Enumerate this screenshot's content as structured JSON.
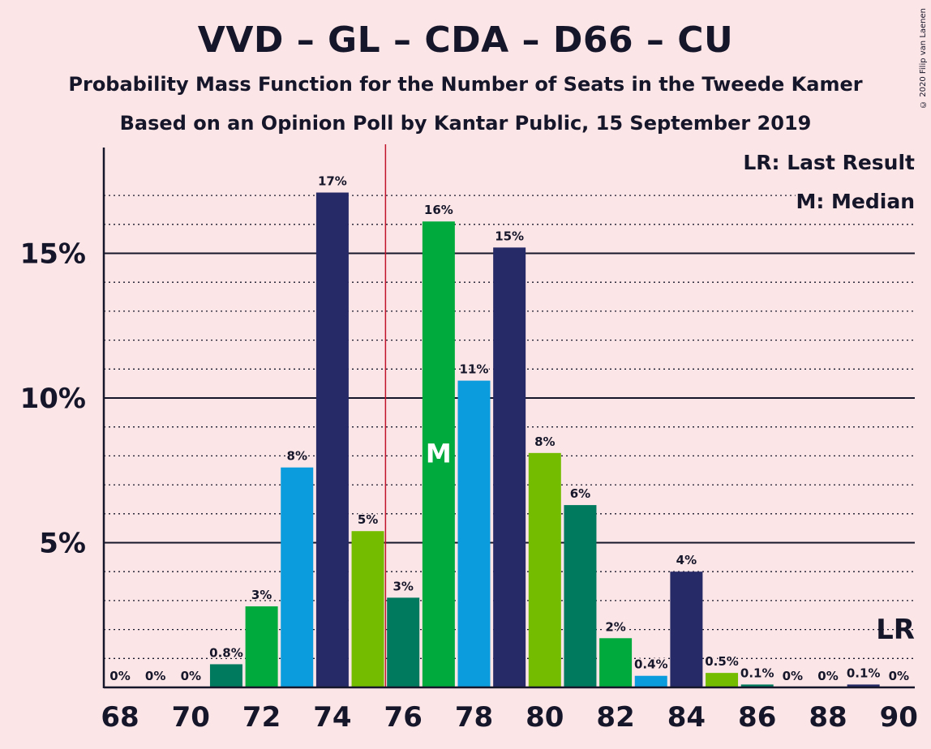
{
  "title": "VVD – GL – CDA – D66 – CU",
  "subtitle": "Probability Mass Function for the Number of Seats in the Tweede Kamer",
  "subtitle2": "Based on an Opinion Poll by Kantar Public, 15 September 2019",
  "copyright": "© 2020 Filip van Laenen",
  "legend": {
    "lr": "LR: Last Result",
    "median": "M: Median"
  },
  "chart_data": {
    "type": "bar",
    "x": [
      68,
      69,
      70,
      71,
      72,
      73,
      74,
      75,
      76,
      77,
      78,
      79,
      80,
      81,
      82,
      83,
      84,
      85,
      86,
      87,
      88,
      89,
      90
    ],
    "values": [
      0,
      0,
      0,
      0.8,
      2.8,
      7.6,
      17.1,
      5.4,
      3.1,
      16.1,
      10.6,
      15.2,
      8.1,
      6.3,
      1.7,
      0.4,
      4.0,
      0.5,
      0.1,
      0,
      0,
      0.1,
      0
    ],
    "labels": [
      "0%",
      "0%",
      "0%",
      "0.8%",
      "3%",
      "8%",
      "17%",
      "5%",
      "3%",
      "16%",
      "11%",
      "15%",
      "8%",
      "6%",
      "2%",
      "0.4%",
      "4%",
      "0.5%",
      "0.1%",
      "0%",
      "0%",
      "0.1%",
      "0%"
    ],
    "bar_colors": [
      "#0a9cdc",
      "#262a66",
      "#74bc00",
      "#007a5e",
      "#00aa3c",
      "#0a9cdc",
      "#262a66",
      "#74bc00",
      "#007a5e",
      "#00aa3c",
      "#0a9cdc",
      "#262a66",
      "#74bc00",
      "#007a5e",
      "#00aa3c",
      "#0a9cdc",
      "#262a66",
      "#74bc00",
      "#007a5e",
      "#00aa3c",
      "#0a9cdc",
      "#262a66",
      "#74bc00"
    ],
    "x_ticks": [
      "68",
      "70",
      "72",
      "74",
      "76",
      "78",
      "80",
      "82",
      "84",
      "86",
      "88",
      "90"
    ],
    "y_ticks": [
      {
        "value": 5,
        "label": "5%"
      },
      {
        "value": 10,
        "label": "10%"
      },
      {
        "value": 15,
        "label": "15%"
      }
    ],
    "ylim": [
      0,
      18.5
    ],
    "median_seat": 77,
    "median_label": "M",
    "majority_line_x": 75.5,
    "last_result_seat": 90,
    "last_result_label": "LR",
    "grid": true
  }
}
